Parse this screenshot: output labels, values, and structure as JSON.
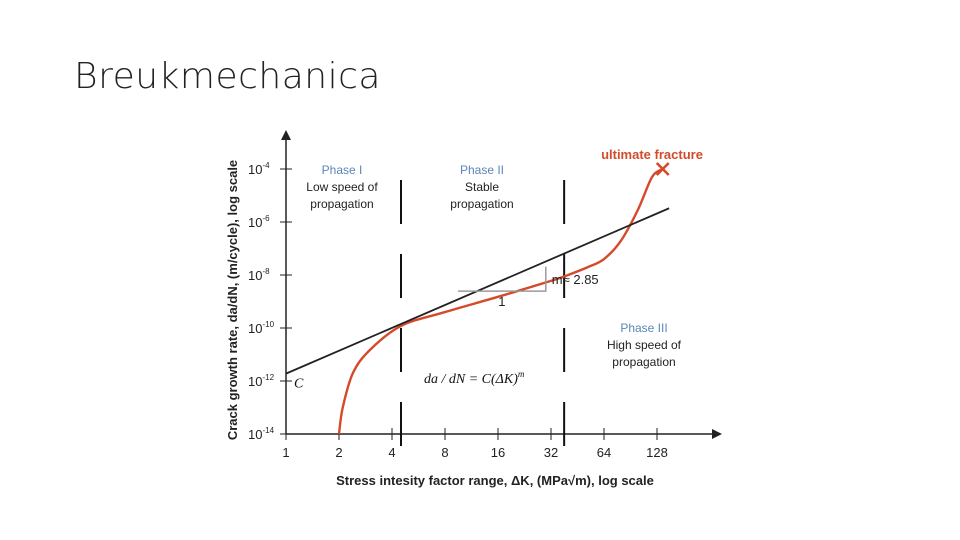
{
  "slide": {
    "title": "Breukmechanica"
  },
  "chart_data": {
    "type": "line",
    "title": "",
    "xlabel": "Stress intesity factor range, ΔK, (MPa√m), log scale",
    "ylabel": "Crack growth rate, da/dN, (m/cycle), log scale",
    "x_scale": "log2",
    "y_scale": "log10",
    "x_ticks": [
      {
        "value": 1,
        "label": "1"
      },
      {
        "value": 2,
        "label": "2"
      },
      {
        "value": 4,
        "label": "4"
      },
      {
        "value": 8,
        "label": "8"
      },
      {
        "value": 16,
        "label": "16"
      },
      {
        "value": 32,
        "label": "32"
      },
      {
        "value": 64,
        "label": "64"
      },
      {
        "value": 128,
        "label": "128"
      }
    ],
    "y_ticks": [
      {
        "value": 1e-14,
        "base": "10",
        "exp": "-14"
      },
      {
        "value": 1e-12,
        "base": "10",
        "exp": "-12"
      },
      {
        "value": 1e-10,
        "base": "10",
        "exp": "-10"
      },
      {
        "value": 1e-08,
        "base": "10",
        "exp": "-8"
      },
      {
        "value": 1e-06,
        "base": "10",
        "exp": "-6"
      },
      {
        "value": 0.0001,
        "base": "10",
        "exp": "-4"
      }
    ],
    "xlim": [
      1,
      200
    ],
    "ylim": [
      1e-14,
      0.0001
    ],
    "series": [
      {
        "color": "#d44a2a",
        "points": [
          [
            2,
            1e-14
          ],
          [
            2.1,
            1e-13
          ],
          [
            2.4,
            2e-12
          ],
          [
            3.0,
            1.5e-11
          ],
          [
            4.5,
            1.2e-10
          ],
          [
            8,
            4e-10
          ],
          [
            16,
            1.5e-09
          ],
          [
            32,
            6e-09
          ],
          [
            40,
            1e-08
          ],
          [
            52,
            2e-08
          ],
          [
            64,
            4e-08
          ],
          [
            80,
            2e-07
          ],
          [
            100,
            3e-06
          ],
          [
            120,
            5e-05
          ],
          [
            138,
            0.0001
          ]
        ]
      },
      {
        "color": "#222222",
        "points": [
          [
            1,
            1.9e-12
          ],
          [
            150,
            3.3e-06
          ]
        ]
      }
    ],
    "phases": [
      {
        "name": "Phase I",
        "desc": [
          "Low speed of",
          "propagation"
        ]
      },
      {
        "name": "Phase II",
        "desc": [
          "Stable",
          "propagation"
        ]
      },
      {
        "name": "Phase III",
        "desc": [
          "High speed of",
          "propagation"
        ]
      }
    ],
    "boundaries_x": [
      4.5,
      38
    ],
    "annotations": {
      "ultimate_fracture": "ultimate fracture",
      "ultimate_fracture_point": [
        138,
        0.0001
      ],
      "slope_label": "m≈ 2.85",
      "run_label": "1",
      "intercept_label": "C",
      "equation": "da / dN = C(ΔK)",
      "equation_exp": "m"
    },
    "grid": false,
    "legend": "none"
  },
  "colors": {
    "curve": "#d44a2a",
    "line": "#222222",
    "phase_header": "#5a86b8",
    "slope_triangle": "#9a9a9a"
  }
}
